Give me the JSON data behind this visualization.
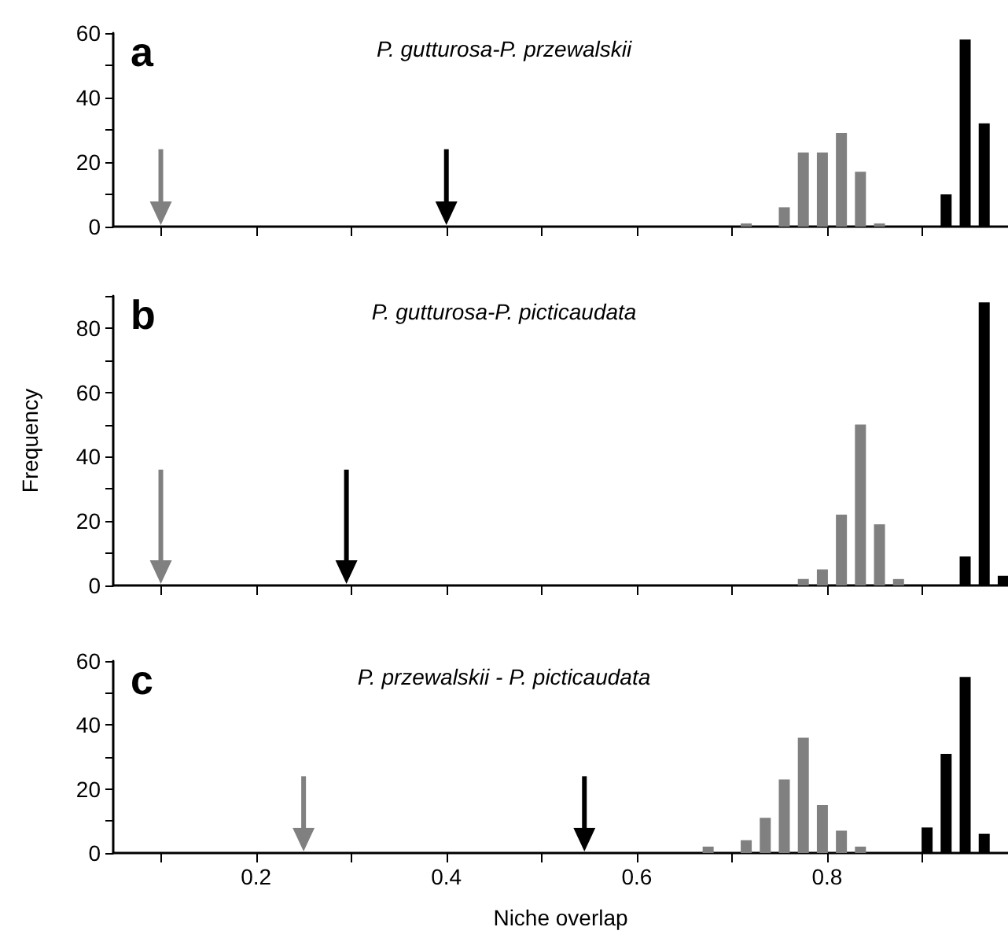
{
  "chart_data": [
    {
      "type": "bar",
      "title": "a",
      "subtitle": "P. gutturosa-P. przewalskii",
      "xlim": [
        0.05,
        0.99
      ],
      "xticks": [
        {
          "value": 0.1,
          "label": null
        },
        {
          "value": 0.2,
          "label": null
        },
        {
          "value": 0.3,
          "label": null
        },
        {
          "value": 0.4,
          "label": null
        },
        {
          "value": 0.5,
          "label": null
        },
        {
          "value": 0.6,
          "label": null
        },
        {
          "value": 0.7,
          "label": null
        },
        {
          "value": 0.8,
          "label": null
        },
        {
          "value": 0.9,
          "label": null
        }
      ],
      "ylim": [
        0,
        60
      ],
      "yticks": [
        0,
        {
          "value": 10,
          "label": null
        },
        20,
        {
          "value": 30,
          "label": null
        },
        40,
        {
          "value": 50,
          "label": null
        },
        60
      ],
      "tick_labels": "y",
      "grid": false,
      "series": [
        {
          "color": "#808080",
          "x": [
            0.715,
            0.755,
            0.775,
            0.795,
            0.815,
            0.835,
            0.855
          ],
          "values": [
            1,
            6,
            23,
            23,
            29,
            17,
            1
          ]
        },
        {
          "color": "#000000",
          "x": [
            0.925,
            0.945,
            0.965
          ],
          "values": [
            10,
            58,
            32
          ]
        }
      ],
      "ref_lines": [
        {
          "axis": "x",
          "value": 0.1,
          "color": "#808080"
        },
        {
          "axis": "x",
          "value": 0.4,
          "color": "#000000"
        }
      ]
    },
    {
      "type": "bar",
      "title": "b",
      "subtitle": "P. gutturosa-P. picticaudata",
      "ylabel": "Frequency",
      "xlim": [
        0.05,
        0.99
      ],
      "xticks": [
        {
          "value": 0.1,
          "label": null
        },
        {
          "value": 0.2,
          "label": null
        },
        {
          "value": 0.3,
          "label": null
        },
        {
          "value": 0.4,
          "label": null
        },
        {
          "value": 0.5,
          "label": null
        },
        {
          "value": 0.6,
          "label": null
        },
        {
          "value": 0.7,
          "label": null
        },
        {
          "value": 0.8,
          "label": null
        },
        {
          "value": 0.9,
          "label": null
        }
      ],
      "ylim": [
        0,
        90
      ],
      "yticks": [
        0,
        {
          "value": 10,
          "label": null
        },
        20,
        {
          "value": 30,
          "label": null
        },
        40,
        {
          "value": 50,
          "label": null
        },
        60,
        {
          "value": 70,
          "label": null
        },
        80,
        {
          "value": 90,
          "label": null
        }
      ],
      "tick_labels": "y",
      "grid": false,
      "series": [
        {
          "color": "#808080",
          "x": [
            0.775,
            0.795,
            0.815,
            0.835,
            0.855,
            0.875
          ],
          "values": [
            2,
            5,
            22,
            50,
            19,
            2
          ]
        },
        {
          "color": "#000000",
          "x": [
            0.945,
            0.965,
            0.985
          ],
          "values": [
            9,
            88,
            3
          ]
        }
      ],
      "ref_lines": [
        {
          "axis": "x",
          "value": 0.1,
          "color": "#808080"
        },
        {
          "axis": "x",
          "value": 0.295,
          "color": "#000000"
        }
      ]
    },
    {
      "type": "bar",
      "title": "c",
      "subtitle": "P. przewalskii - P. picticaudata",
      "xlabel": "Niche overlap",
      "xlim": [
        0.05,
        0.99
      ],
      "xticks": [
        {
          "value": 0.1,
          "label": null
        },
        0.2,
        {
          "value": 0.3,
          "label": null
        },
        0.4,
        {
          "value": 0.5,
          "label": null
        },
        0.6,
        {
          "value": 0.7,
          "label": null
        },
        0.8,
        {
          "value": 0.9,
          "label": null
        }
      ],
      "ylim": [
        0,
        60
      ],
      "yticks": [
        0,
        {
          "value": 10,
          "label": null
        },
        20,
        {
          "value": 30,
          "label": null
        },
        40,
        {
          "value": 50,
          "label": null
        },
        60
      ],
      "grid": false,
      "series": [
        {
          "color": "#808080",
          "x": [
            0.675,
            0.715,
            0.735,
            0.755,
            0.775,
            0.795,
            0.815,
            0.835
          ],
          "values": [
            2,
            4,
            11,
            23,
            36,
            15,
            7,
            2
          ]
        },
        {
          "color": "#000000",
          "x": [
            0.905,
            0.925,
            0.945,
            0.965
          ],
          "values": [
            8,
            31,
            55,
            6
          ]
        }
      ],
      "ref_lines": [
        {
          "axis": "x",
          "value": 0.25,
          "color": "#808080"
        },
        {
          "axis": "x",
          "value": 0.545,
          "color": "#000000"
        }
      ]
    }
  ]
}
